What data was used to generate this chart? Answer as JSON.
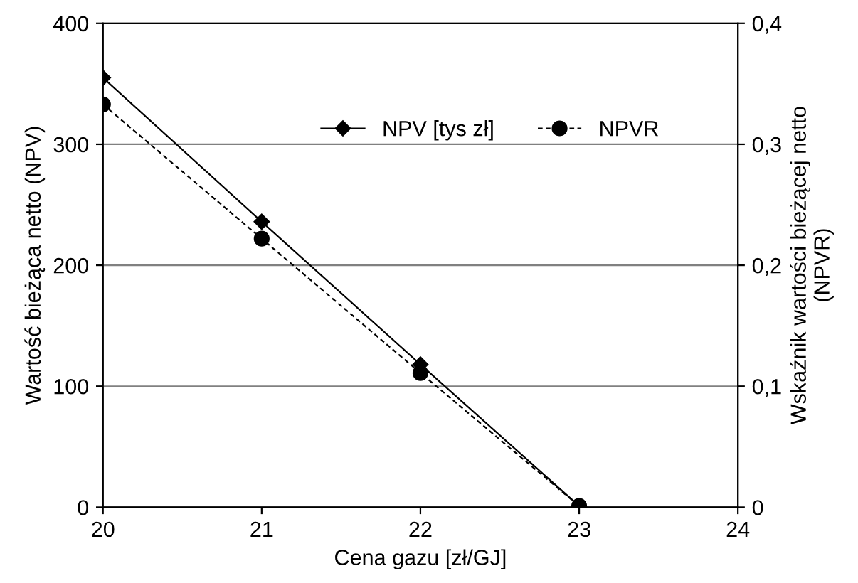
{
  "chart_data": {
    "type": "line",
    "xlabel": "Cena gazu [zł/GJ]",
    "ylabel": "Wartość bieżąca netto (NPV)",
    "y2label": "Wskaźnik wartości bieżącej netto\n(NPVR)",
    "x": [
      20,
      21,
      22,
      23
    ],
    "series": [
      {
        "name": "NPV [tys zł]",
        "color": "#000000",
        "values": [
          355,
          236,
          118,
          1
        ],
        "marker": "diamond",
        "line_style": "solid"
      },
      {
        "name": "NPVR",
        "color": "#000000",
        "values": [
          0.333,
          0.222,
          0.111,
          0.001
        ],
        "axis": "y2",
        "marker": "circle",
        "line_style": "dashed"
      }
    ],
    "xlim": [
      20,
      24
    ],
    "xticks": [
      20,
      21,
      22,
      23,
      24
    ],
    "ylim": [
      0,
      400
    ],
    "yticks": [
      0,
      100,
      200,
      300,
      400
    ],
    "y2lim": [
      0,
      0.4
    ],
    "y2ticks": [
      0,
      {
        "value": 0.1,
        "label": "0,1"
      },
      {
        "value": 0.2,
        "label": "0,2"
      },
      {
        "value": 0.3,
        "label": "0,3"
      },
      {
        "value": 0.4,
        "label": "0,4"
      }
    ],
    "grid": "y",
    "legend": "top right"
  }
}
